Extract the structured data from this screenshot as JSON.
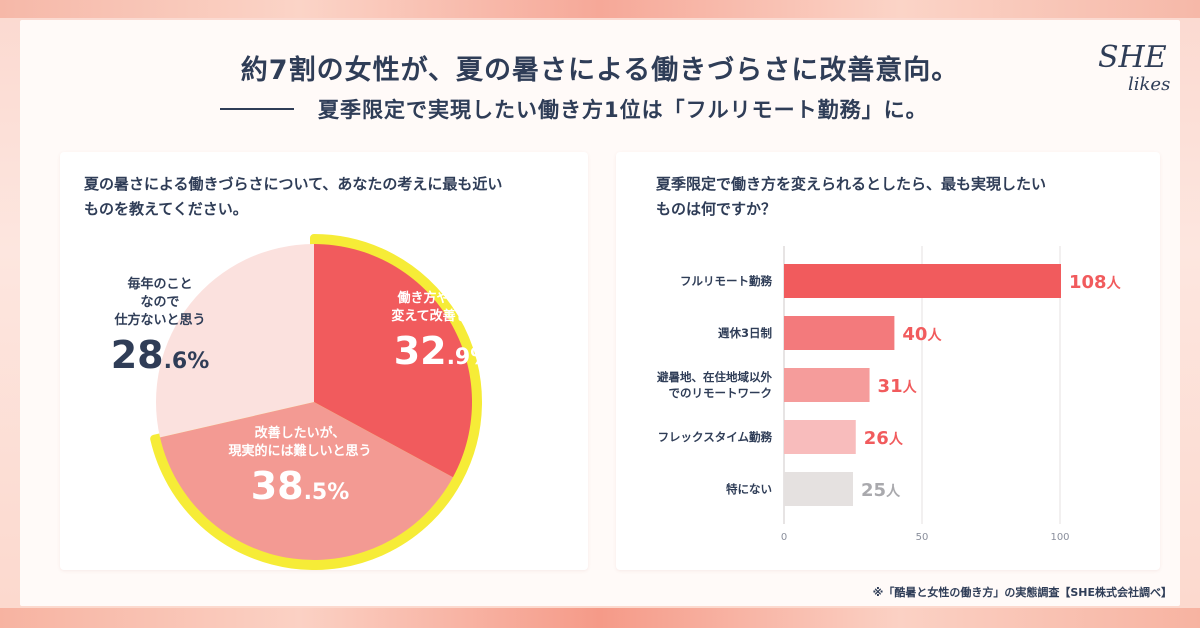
{
  "header": {
    "title": "約7割の女性が、夏の暑さによる働きづらさに改善意向。",
    "subtitle": "夏季限定で実現したい働き方1位は「フルリモート勤務」に。",
    "logo_she": "SHE",
    "logo_likes": "likes"
  },
  "footnote": "※「酷暑と女性の働き方」の実態調査【SHE株式会社調べ】",
  "colors": {
    "pie_slice_1": "#f15b5d",
    "pie_slice_2": "#f39a93",
    "pie_slice_3": "#fbe1de",
    "highlight": "#f6ec37",
    "bar_1": "#f15b5d",
    "bar_2": "#f37a7c",
    "bar_3": "#f59c9b",
    "bar_4": "#f8bcbc",
    "bar_5": "#e5e1e0",
    "value_text": "#f15b5d",
    "value_text_gray": "#a9a9ad"
  },
  "chart_data": [
    {
      "type": "pie",
      "title": "夏の暑さによる働きづらさについて、あなたの考えに最も近いものを教えてください。",
      "title_lines": [
        "夏の暑さによる働きづらさについて、あなたの考えに最も近い",
        "ものを教えてください。"
      ],
      "slices": [
        {
          "label": "働き方や環境を変えて改善したい",
          "label_lines": [
            "働き方や環境を",
            "変えて改善したい"
          ],
          "value": 32.9,
          "int_text": "32",
          "dec_text": ".9",
          "pct": "%",
          "highlighted": true
        },
        {
          "label": "改善したいが、現実的には難しいと思う",
          "label_lines": [
            "改善したいが、",
            "現実的には難しいと思う"
          ],
          "value": 38.5,
          "int_text": "38",
          "dec_text": ".5",
          "pct": "%",
          "highlighted": true
        },
        {
          "label": "毎年のことなので仕方ないと思う",
          "label_lines": [
            "毎年のこと",
            "なので",
            "仕方ないと思う"
          ],
          "value": 28.6,
          "int_text": "28",
          "dec_text": ".6",
          "pct": "%",
          "highlighted": false
        }
      ]
    },
    {
      "type": "bar",
      "orientation": "horizontal",
      "title": "夏季限定で働き方を変えられるとしたら、最も実現したいものは何ですか？",
      "title_lines": [
        "夏季限定で働き方を変えられるとしたら、最も実現したい",
        "ものは何ですか？"
      ],
      "categories": [
        "フルリモート勤務",
        "週休3日制",
        "避暑地、在住地域以外でのリモートワーク",
        "フレックスタイム勤務",
        "特にない"
      ],
      "category_lines": [
        [
          "フルリモート勤務"
        ],
        [
          "週休3日制"
        ],
        [
          "避暑地、在住地域以外",
          "でのリモートワーク"
        ],
        [
          "フレックスタイム勤務"
        ],
        [
          "特にない"
        ]
      ],
      "values": [
        108,
        40,
        31,
        26,
        25
      ],
      "value_labels": [
        "108",
        "40",
        "31",
        "26",
        "25"
      ],
      "unit": "人",
      "xlim": [
        0,
        100
      ],
      "xticks": [
        0,
        50,
        100
      ],
      "xtick_labels": [
        "0",
        "50",
        "100"
      ],
      "grid": true
    }
  ]
}
